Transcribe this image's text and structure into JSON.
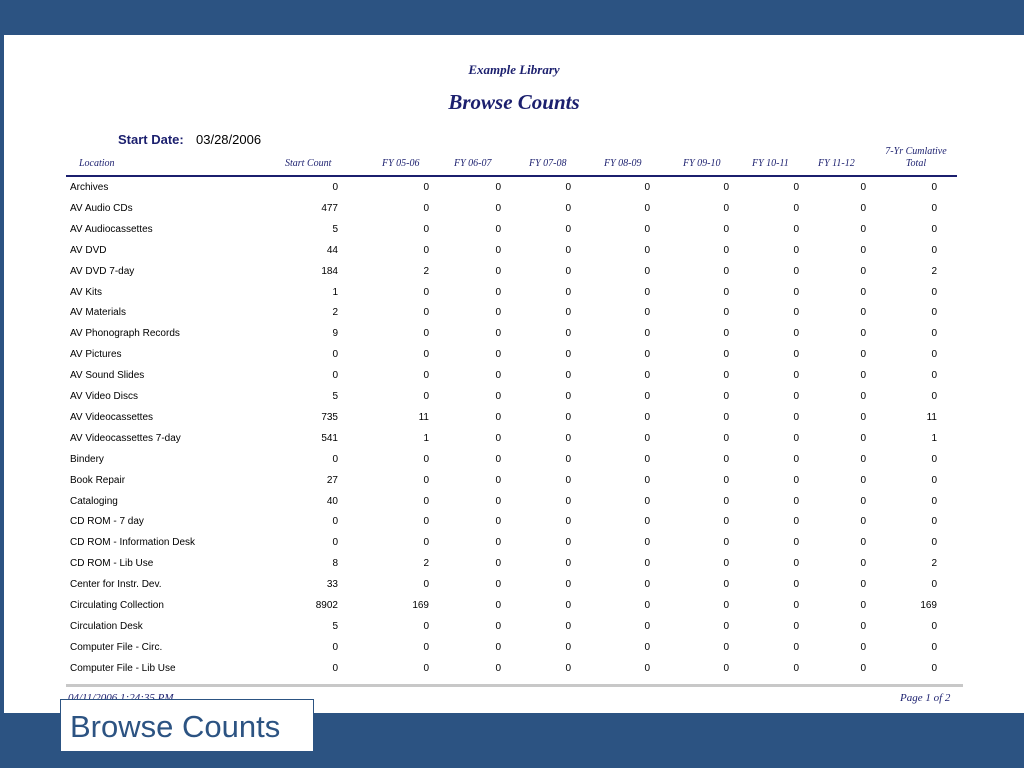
{
  "report": {
    "subtitle": "Example Library",
    "title": "Browse Counts",
    "start_date_label": "Start Date:",
    "start_date_value": "03/28/2006",
    "columns": [
      "Location",
      "Start Count",
      "FY 05-06",
      "FY 06-07",
      "FY 07-08",
      "FY 08-09",
      "FY 09-10",
      "FY 10-11",
      "FY 11-12"
    ],
    "total_column": {
      "line1": "7-Yr Cumlative",
      "line2": "Total"
    },
    "rows": [
      [
        "Archives",
        "0",
        "0",
        "0",
        "0",
        "0",
        "0",
        "0",
        "0",
        "0"
      ],
      [
        "AV Audio CDs",
        "477",
        "0",
        "0",
        "0",
        "0",
        "0",
        "0",
        "0",
        "0"
      ],
      [
        "AV Audiocassettes",
        "5",
        "0",
        "0",
        "0",
        "0",
        "0",
        "0",
        "0",
        "0"
      ],
      [
        "AV DVD",
        "44",
        "0",
        "0",
        "0",
        "0",
        "0",
        "0",
        "0",
        "0"
      ],
      [
        "AV DVD 7-day",
        "184",
        "2",
        "0",
        "0",
        "0",
        "0",
        "0",
        "0",
        "2"
      ],
      [
        "AV Kits",
        "1",
        "0",
        "0",
        "0",
        "0",
        "0",
        "0",
        "0",
        "0"
      ],
      [
        "AV Materials",
        "2",
        "0",
        "0",
        "0",
        "0",
        "0",
        "0",
        "0",
        "0"
      ],
      [
        "AV Phonograph Records",
        "9",
        "0",
        "0",
        "0",
        "0",
        "0",
        "0",
        "0",
        "0"
      ],
      [
        "AV Pictures",
        "0",
        "0",
        "0",
        "0",
        "0",
        "0",
        "0",
        "0",
        "0"
      ],
      [
        "AV Sound Slides",
        "0",
        "0",
        "0",
        "0",
        "0",
        "0",
        "0",
        "0",
        "0"
      ],
      [
        "AV Video Discs",
        "5",
        "0",
        "0",
        "0",
        "0",
        "0",
        "0",
        "0",
        "0"
      ],
      [
        "AV Videocassettes",
        "735",
        "11",
        "0",
        "0",
        "0",
        "0",
        "0",
        "0",
        "11"
      ],
      [
        "AV Videocassettes 7-day",
        "541",
        "1",
        "0",
        "0",
        "0",
        "0",
        "0",
        "0",
        "1"
      ],
      [
        "Bindery",
        "0",
        "0",
        "0",
        "0",
        "0",
        "0",
        "0",
        "0",
        "0"
      ],
      [
        "Book Repair",
        "27",
        "0",
        "0",
        "0",
        "0",
        "0",
        "0",
        "0",
        "0"
      ],
      [
        "Cataloging",
        "40",
        "0",
        "0",
        "0",
        "0",
        "0",
        "0",
        "0",
        "0"
      ],
      [
        "CD ROM - 7 day",
        "0",
        "0",
        "0",
        "0",
        "0",
        "0",
        "0",
        "0",
        "0"
      ],
      [
        "CD ROM - Information Desk",
        "0",
        "0",
        "0",
        "0",
        "0",
        "0",
        "0",
        "0",
        "0"
      ],
      [
        "CD ROM - Lib Use",
        "8",
        "2",
        "0",
        "0",
        "0",
        "0",
        "0",
        "0",
        "2"
      ],
      [
        "Center for Instr. Dev.",
        "33",
        "0",
        "0",
        "0",
        "0",
        "0",
        "0",
        "0",
        "0"
      ],
      [
        "Circulating Collection",
        "8902",
        "169",
        "0",
        "0",
        "0",
        "0",
        "0",
        "0",
        "169"
      ],
      [
        "Circulation Desk",
        "5",
        "0",
        "0",
        "0",
        "0",
        "0",
        "0",
        "0",
        "0"
      ],
      [
        "Computer File - Circ.",
        "0",
        "0",
        "0",
        "0",
        "0",
        "0",
        "0",
        "0",
        "0"
      ],
      [
        "Computer File - Lib Use",
        "0",
        "0",
        "0",
        "0",
        "0",
        "0",
        "0",
        "0",
        "0"
      ]
    ],
    "footer_date": "04/11/2006 1:24:35 PM",
    "footer_page": "Page 1 of 2"
  },
  "slide": {
    "caption": "Browse Counts"
  },
  "colors": {
    "slide_background": "#2c5382",
    "report_ink": "#1b1f6e"
  }
}
